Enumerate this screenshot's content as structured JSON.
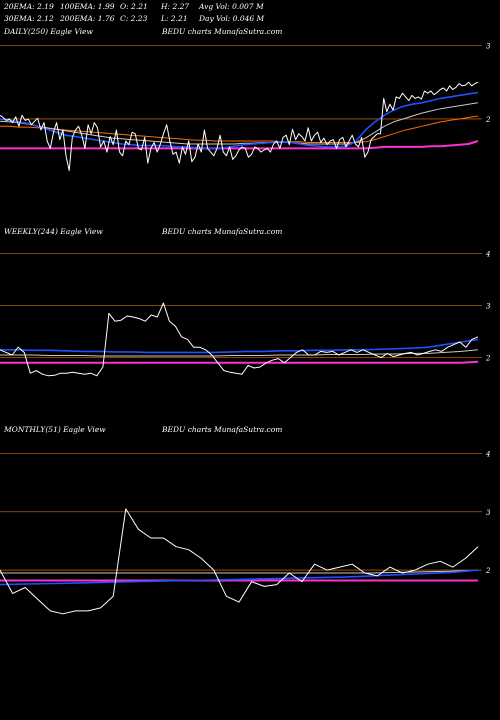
{
  "header": {
    "row1": [
      "20EMA: 2.19",
      "100EMA: 1.99",
      "O: 2.21",
      "H: 2.27",
      "Avg Vol: 0.007  M"
    ],
    "row2": [
      "30EMA: 2.12",
      "200EMA: 1.76",
      "C: 2.23",
      "L: 2.21",
      "Day Vol: 0.046  M"
    ]
  },
  "panels": [
    {
      "title": "DAILY(250) Eagle   View",
      "watermark": "BEDU charts MunafaSutra.com"
    },
    {
      "title": "WEEKLY(244) Eagle   View",
      "watermark": "BEDU charts MunafaSutra.com"
    },
    {
      "title": "MONTHLY(51) Eagle   View",
      "watermark": "BEDU charts MunafaSutra.com"
    }
  ],
  "colors": {
    "background": "#000000",
    "price": "#ffffff",
    "ema_short": "#1e50ff",
    "ema_mid": "#c8c8c8",
    "ema_long": "#ff6a00",
    "ema_200": "#ff2fd1",
    "grid_orange": "#b35c00",
    "support": "#5a6dff"
  },
  "chart_data": [
    {
      "type": "line",
      "name": "DAILY(250)",
      "y_ticks": [
        "3",
        "2"
      ],
      "y_tick_values": [
        3,
        2
      ],
      "ylim": [
        0.6,
        3.1
      ],
      "price": [
        2.05,
        2.02,
        1.98,
        2.0,
        1.95,
        2.03,
        1.9,
        2.05,
        1.98,
        2.0,
        1.92,
        1.97,
        2.01,
        1.85,
        1.95,
        1.7,
        1.6,
        1.82,
        1.95,
        1.72,
        1.85,
        1.5,
        1.3,
        1.75,
        1.85,
        1.9,
        1.78,
        1.6,
        1.92,
        1.8,
        1.95,
        1.88,
        1.62,
        1.7,
        1.55,
        1.76,
        1.65,
        1.85,
        1.55,
        1.5,
        1.7,
        1.65,
        1.82,
        1.8,
        1.6,
        1.58,
        1.75,
        1.4,
        1.6,
        1.68,
        1.55,
        1.66,
        1.8,
        1.92,
        1.7,
        1.52,
        1.55,
        1.4,
        1.62,
        1.52,
        1.7,
        1.42,
        1.48,
        1.66,
        1.55,
        1.85,
        1.6,
        1.55,
        1.5,
        1.6,
        1.78,
        1.55,
        1.5,
        1.62,
        1.45,
        1.5,
        1.58,
        1.62,
        1.6,
        1.48,
        1.52,
        1.62,
        1.6,
        1.55,
        1.58,
        1.6,
        1.55,
        1.66,
        1.7,
        1.6,
        1.75,
        1.78,
        1.65,
        1.86,
        1.72,
        1.8,
        1.76,
        1.7,
        1.88,
        1.7,
        1.78,
        1.82,
        1.68,
        1.74,
        1.65,
        1.7,
        1.72,
        1.6,
        1.72,
        1.75,
        1.62,
        1.7,
        1.78,
        1.66,
        1.62,
        1.75,
        1.48,
        1.55,
        1.72,
        1.76,
        1.8,
        1.8,
        2.28,
        2.1,
        2.2,
        2.12,
        2.3,
        2.28,
        2.35,
        2.3,
        2.25,
        2.32,
        2.28,
        2.3,
        2.27,
        2.38,
        2.35,
        2.38,
        2.33,
        2.36,
        2.4,
        2.42,
        2.38,
        2.45,
        2.4,
        2.43,
        2.48,
        2.45,
        2.46,
        2.5,
        2.45,
        2.48,
        2.5
      ],
      "ema_blue": [
        2.0,
        1.98,
        1.96,
        1.94,
        1.9,
        1.86,
        1.82,
        1.78,
        1.76,
        1.74,
        1.72,
        1.7,
        1.68,
        1.66,
        1.65,
        1.64,
        1.64,
        1.64,
        1.63,
        1.62,
        1.62,
        1.61,
        1.6,
        1.6,
        1.61,
        1.63,
        1.65,
        1.66,
        1.67,
        1.68,
        1.69,
        1.68,
        1.66,
        1.64,
        1.63,
        1.62,
        1.62,
        1.63,
        1.7,
        1.85,
        1.96,
        2.05,
        2.12,
        2.17,
        2.2,
        2.22,
        2.25,
        2.28,
        2.3,
        2.32,
        2.34,
        2.36
      ],
      "ema_grey": [
        1.97,
        1.96,
        1.95,
        1.93,
        1.9,
        1.88,
        1.86,
        1.84,
        1.82,
        1.8,
        1.78,
        1.76,
        1.74,
        1.73,
        1.72,
        1.71,
        1.7,
        1.69,
        1.68,
        1.67,
        1.66,
        1.66,
        1.66,
        1.66,
        1.66,
        1.66,
        1.67,
        1.67,
        1.68,
        1.68,
        1.68,
        1.68,
        1.67,
        1.66,
        1.66,
        1.66,
        1.66,
        1.66,
        1.68,
        1.74,
        1.82,
        1.9,
        1.96,
        2.0,
        2.04,
        2.08,
        2.11,
        2.14,
        2.16,
        2.18,
        2.2,
        2.22
      ],
      "ema_orange": [
        1.9,
        1.9,
        1.89,
        1.89,
        1.88,
        1.87,
        1.86,
        1.85,
        1.84,
        1.83,
        1.82,
        1.81,
        1.8,
        1.79,
        1.78,
        1.77,
        1.76,
        1.75,
        1.74,
        1.73,
        1.72,
        1.71,
        1.71,
        1.7,
        1.7,
        1.7,
        1.7,
        1.7,
        1.7,
        1.7,
        1.69,
        1.69,
        1.69,
        1.68,
        1.68,
        1.68,
        1.68,
        1.68,
        1.68,
        1.69,
        1.72,
        1.76,
        1.8,
        1.84,
        1.87,
        1.9,
        1.93,
        1.96,
        1.98,
        2.0,
        2.02,
        2.04
      ],
      "ema_200": [
        1.6,
        1.6,
        1.6,
        1.6,
        1.6,
        1.6,
        1.6,
        1.6,
        1.6,
        1.6,
        1.6,
        1.6,
        1.6,
        1.6,
        1.6,
        1.6,
        1.6,
        1.6,
        1.6,
        1.6,
        1.6,
        1.6,
        1.6,
        1.6,
        1.6,
        1.6,
        1.6,
        1.6,
        1.6,
        1.6,
        1.6,
        1.6,
        1.6,
        1.6,
        1.6,
        1.6,
        1.6,
        1.6,
        1.6,
        1.6,
        1.61,
        1.62,
        1.62,
        1.62,
        1.62,
        1.62,
        1.63,
        1.63,
        1.64,
        1.65,
        1.66,
        1.7
      ]
    },
    {
      "type": "line",
      "name": "WEEKLY(244)",
      "y_ticks": [
        "4",
        "3",
        "2"
      ],
      "y_tick_values": [
        4,
        3,
        2
      ],
      "ylim": [
        0.8,
        4.3
      ],
      "price": [
        2.15,
        2.1,
        2.05,
        2.2,
        2.1,
        1.7,
        1.75,
        1.68,
        1.65,
        1.66,
        1.7,
        1.7,
        1.72,
        1.7,
        1.68,
        1.7,
        1.65,
        1.82,
        2.85,
        2.7,
        2.72,
        2.8,
        2.78,
        2.75,
        2.7,
        2.82,
        2.78,
        3.05,
        2.7,
        2.6,
        2.4,
        2.35,
        2.2,
        2.2,
        2.15,
        2.05,
        1.9,
        1.75,
        1.72,
        1.7,
        1.68,
        1.85,
        1.8,
        1.82,
        1.9,
        1.95,
        1.98,
        1.9,
        2.0,
        2.1,
        2.15,
        2.05,
        2.05,
        2.12,
        2.1,
        2.12,
        2.05,
        2.1,
        2.15,
        2.1,
        2.15,
        2.1,
        2.05,
        2.0,
        2.08,
        2.02,
        2.05,
        2.08,
        2.1,
        2.05,
        2.08,
        2.12,
        2.15,
        2.12,
        2.2,
        2.25,
        2.3,
        2.2,
        2.35,
        2.4
      ],
      "ema_blue": [
        2.15,
        2.15,
        2.14,
        2.14,
        2.13,
        2.12,
        2.12,
        2.11,
        2.11,
        2.1,
        2.1,
        2.1,
        2.1,
        2.1,
        2.11,
        2.12,
        2.12,
        2.13,
        2.13,
        2.14,
        2.14,
        2.15,
        2.15,
        2.16,
        2.17,
        2.18,
        2.2,
        2.25,
        2.3,
        2.35
      ],
      "ema_grey": [
        2.05,
        2.05,
        2.05,
        2.04,
        2.04,
        2.04,
        2.03,
        2.03,
        2.03,
        2.03,
        2.03,
        2.03,
        2.03,
        2.03,
        2.04,
        2.04,
        2.04,
        2.05,
        2.05,
        2.05,
        2.06,
        2.06,
        2.06,
        2.07,
        2.07,
        2.08,
        2.08,
        2.1,
        2.12,
        2.15
      ],
      "ema_200": [
        1.9,
        1.9,
        1.9,
        1.9,
        1.9,
        1.9,
        1.9,
        1.9,
        1.9,
        1.9,
        1.9,
        1.9,
        1.9,
        1.9,
        1.9,
        1.9,
        1.9,
        1.9,
        1.9,
        1.9,
        1.9,
        1.9,
        1.9,
        1.9,
        1.9,
        1.9,
        1.9,
        1.9,
        1.9,
        1.92
      ]
    },
    {
      "type": "line",
      "name": "MONTHLY(51)",
      "y_ticks": [
        "4",
        "3",
        "2"
      ],
      "y_tick_values": [
        4,
        3,
        2
      ],
      "ylim": [
        0.8,
        4.3
      ],
      "price": [
        2.0,
        1.6,
        1.7,
        1.5,
        1.3,
        1.25,
        1.3,
        1.3,
        1.35,
        1.55,
        3.05,
        2.7,
        2.55,
        2.55,
        2.4,
        2.35,
        2.2,
        2.0,
        1.55,
        1.45,
        1.8,
        1.72,
        1.75,
        1.95,
        1.8,
        2.1,
        2.0,
        2.05,
        2.1,
        1.95,
        1.9,
        2.05,
        1.95,
        2.0,
        2.1,
        2.15,
        2.05,
        2.2,
        2.4
      ],
      "ema_blue": [
        1.75,
        1.76,
        1.77,
        1.78,
        1.79,
        1.8,
        1.81,
        1.82,
        1.83,
        1.84,
        1.85,
        1.86,
        1.87,
        1.88,
        1.9,
        1.92,
        1.94,
        1.96,
        2.0
      ],
      "ema_grey": [
        1.95,
        1.95,
        1.95,
        1.95,
        1.95,
        1.95,
        1.95,
        1.95,
        1.95,
        1.95,
        1.95,
        1.95,
        1.95,
        1.95,
        1.95,
        1.96,
        1.97,
        1.98,
        2.0
      ],
      "ema_200": [
        1.82,
        1.82,
        1.82,
        1.82,
        1.82,
        1.82,
        1.82,
        1.82,
        1.82,
        1.82,
        1.82,
        1.82,
        1.82,
        1.82,
        1.82,
        1.82,
        1.82,
        1.82,
        1.82
      ]
    }
  ]
}
